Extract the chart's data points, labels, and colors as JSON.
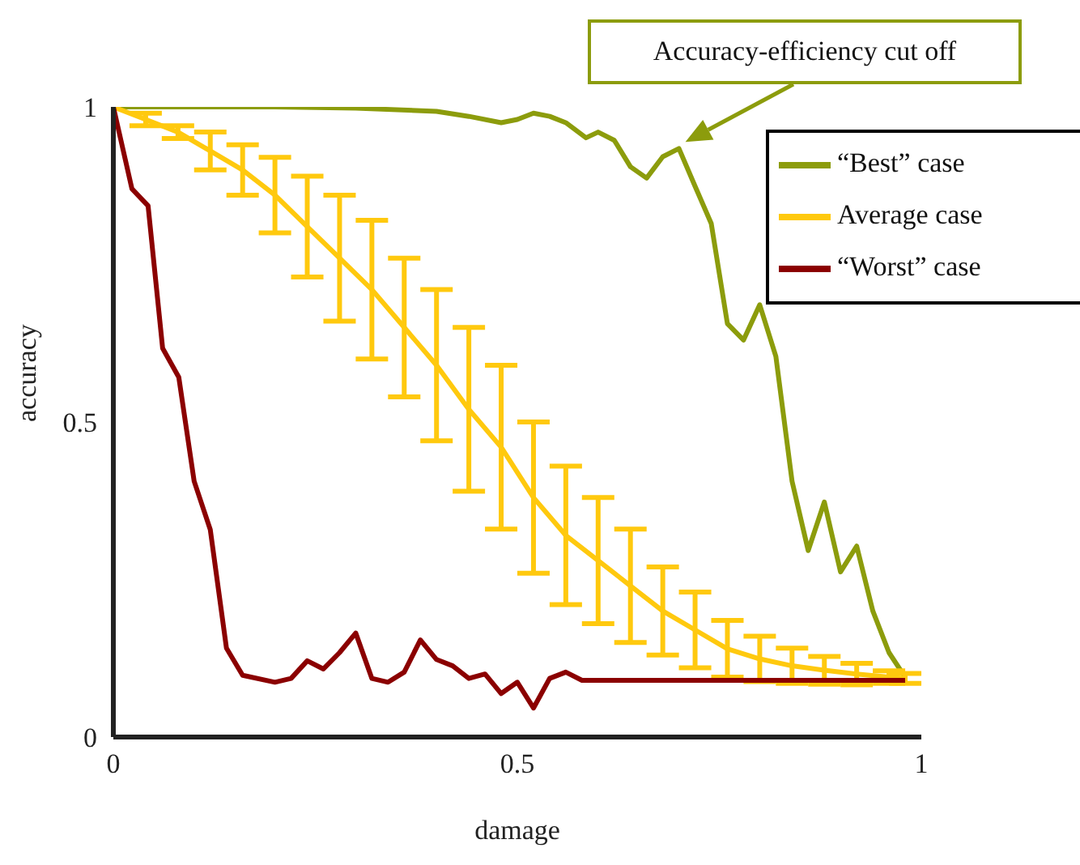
{
  "chart_data": {
    "type": "line",
    "xlabel": "damage",
    "ylabel": "accuracy",
    "xlim": [
      0,
      1
    ],
    "xticks": [
      0,
      0.5,
      1
    ],
    "ylim": [
      0,
      1
    ],
    "yticks": [
      0,
      0.5,
      1
    ],
    "grid": false,
    "legend": "top right",
    "marker": "none",
    "line_style": "solid",
    "annotations": [
      {
        "text": "Accuracy-efficiency cut off",
        "x": 0.7,
        "y": 0.934
      }
    ],
    "series": [
      {
        "name": "“Best” case",
        "color": "#8c9c0c",
        "x": [
          0,
          0.1,
          0.2,
          0.3,
          0.4,
          0.44,
          0.48,
          0.5,
          0.52,
          0.54,
          0.56,
          0.585,
          0.6,
          0.62,
          0.64,
          0.66,
          0.68,
          0.7,
          0.72,
          0.74,
          0.76,
          0.78,
          0.8,
          0.82,
          0.84,
          0.86,
          0.88,
          0.9,
          0.92,
          0.94,
          0.96,
          0.98
        ],
        "values": [
          1.0,
          1.0,
          1.0,
          0.998,
          0.993,
          0.985,
          0.975,
          0.98,
          0.99,
          0.985,
          0.975,
          0.951,
          0.96,
          0.947,
          0.905,
          0.887,
          0.921,
          0.934,
          0.874,
          0.815,
          0.656,
          0.63,
          0.686,
          0.604,
          0.406,
          0.296,
          0.373,
          0.262,
          0.303,
          0.2,
          0.134,
          0.095
        ]
      },
      {
        "name": "Average case",
        "color": "#ffc90e",
        "x": [
          0,
          0.04,
          0.08,
          0.12,
          0.16,
          0.2,
          0.24,
          0.28,
          0.32,
          0.36,
          0.4,
          0.44,
          0.48,
          0.52,
          0.56,
          0.6,
          0.64,
          0.68,
          0.72,
          0.76,
          0.8,
          0.84,
          0.88,
          0.92,
          0.96,
          0.98
        ],
        "values": [
          1.0,
          0.98,
          0.96,
          0.93,
          0.9,
          0.86,
          0.81,
          0.76,
          0.71,
          0.65,
          0.59,
          0.52,
          0.46,
          0.38,
          0.32,
          0.28,
          0.24,
          0.2,
          0.17,
          0.14,
          0.124,
          0.113,
          0.106,
          0.1,
          0.095,
          0.093
        ],
        "errors": [
          0,
          0.01,
          0.01,
          0.03,
          0.04,
          0.06,
          0.08,
          0.1,
          0.11,
          0.11,
          0.12,
          0.13,
          0.13,
          0.12,
          0.11,
          0.1,
          0.09,
          0.07,
          0.06,
          0.045,
          0.036,
          0.028,
          0.022,
          0.017,
          0.01,
          0.008
        ]
      },
      {
        "name": "“Worst” case",
        "color": "#8b0000",
        "x": [
          0,
          0.023,
          0.043,
          0.061,
          0.081,
          0.1,
          0.12,
          0.14,
          0.16,
          0.2,
          0.22,
          0.24,
          0.26,
          0.28,
          0.3,
          0.32,
          0.34,
          0.36,
          0.38,
          0.4,
          0.42,
          0.44,
          0.46,
          0.48,
          0.5,
          0.52,
          0.54,
          0.56,
          0.58,
          0.98
        ],
        "values": [
          1.0,
          0.87,
          0.843,
          0.617,
          0.571,
          0.406,
          0.329,
          0.141,
          0.098,
          0.087,
          0.093,
          0.121,
          0.108,
          0.134,
          0.165,
          0.093,
          0.087,
          0.103,
          0.154,
          0.123,
          0.113,
          0.093,
          0.1,
          0.069,
          0.087,
          0.046,
          0.093,
          0.103,
          0.09,
          0.09
        ]
      }
    ]
  }
}
